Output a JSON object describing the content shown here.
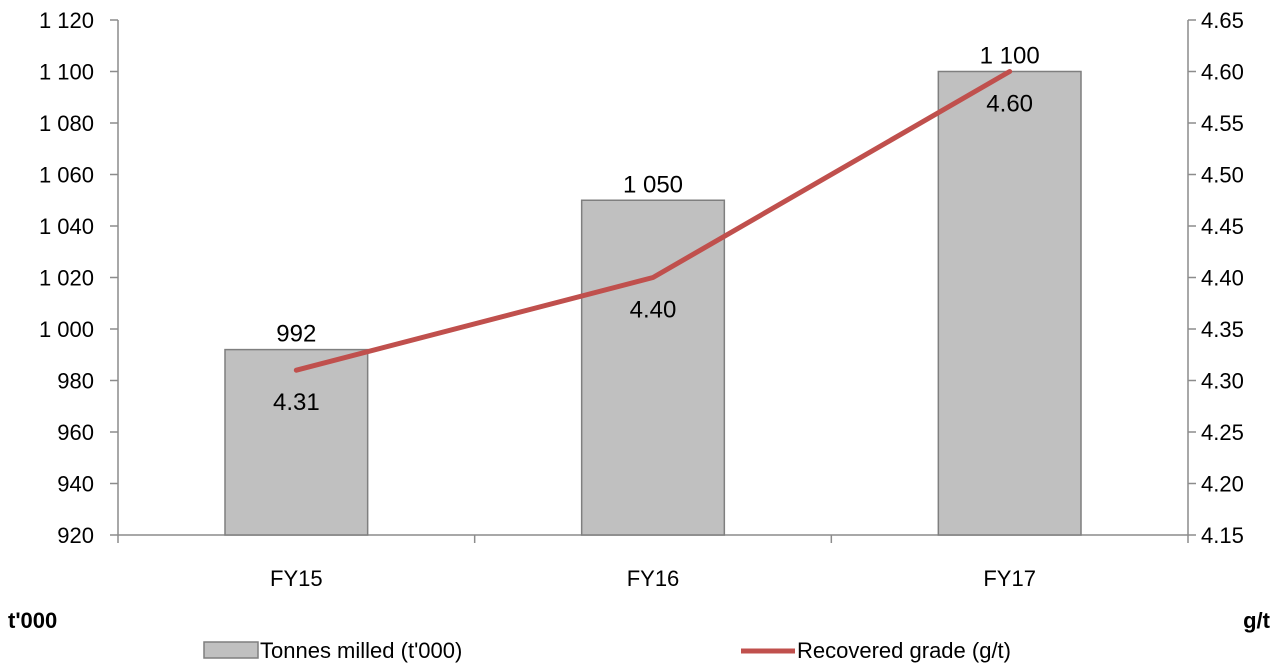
{
  "chart_data": {
    "type": "bar+line",
    "categories": [
      "FY15",
      "FY16",
      "FY17"
    ],
    "series": [
      {
        "name": "Tonnes milled (t'000)",
        "type": "bar",
        "axis": "left",
        "values": [
          992,
          1050,
          1100
        ],
        "labels": [
          "992",
          "1 050",
          "1 100"
        ],
        "color": "#c0c0c0",
        "border": "#7f7f7f"
      },
      {
        "name": "Recovered grade (g/t)",
        "type": "line",
        "axis": "right",
        "values": [
          4.31,
          4.4,
          4.6
        ],
        "labels": [
          "4.31",
          "4.40",
          "4.60"
        ],
        "color": "#c0504d"
      }
    ],
    "left_axis": {
      "unit_label": "t'000",
      "ylim": [
        920,
        1120
      ],
      "ticks": [
        920,
        940,
        960,
        980,
        1000,
        1020,
        1040,
        1060,
        1080,
        1100,
        1120
      ],
      "tick_labels": [
        "920",
        "940",
        "960",
        "980",
        "1 000",
        "1 020",
        "1 040",
        "1 060",
        "1 080",
        "1 100",
        "1 120"
      ]
    },
    "right_axis": {
      "unit_label": "g/t",
      "ylim": [
        4.15,
        4.65
      ],
      "ticks": [
        4.15,
        4.2,
        4.25,
        4.3,
        4.35,
        4.4,
        4.45,
        4.5,
        4.55,
        4.6,
        4.65
      ],
      "tick_labels": [
        "4.15",
        "4.20",
        "4.25",
        "4.30",
        "4.35",
        "4.40",
        "4.45",
        "4.50",
        "4.55",
        "4.60",
        "4.65"
      ]
    },
    "grid": false,
    "legend": "bottom",
    "axis_color": "#8c8c8c"
  }
}
